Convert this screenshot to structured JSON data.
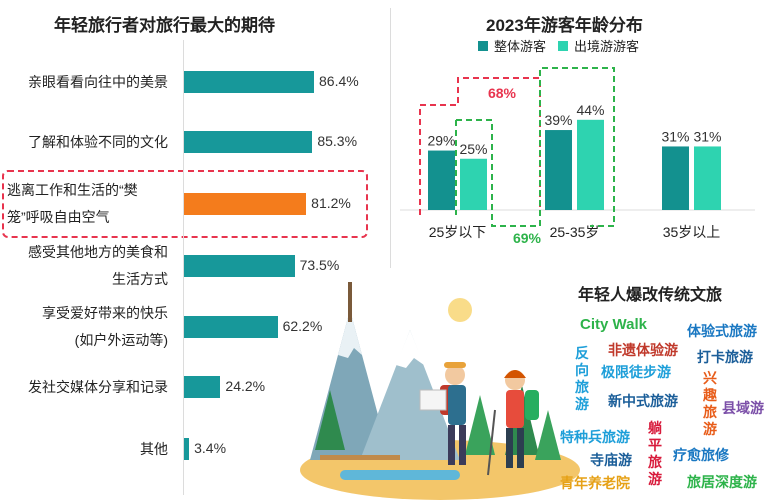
{
  "chart_data": [
    {
      "type": "bar",
      "orientation": "horizontal",
      "title": "年轻旅行者对旅行最大的期待",
      "categories": [
        [
          "亲眼看看向往中的美景"
        ],
        [
          "了解和体验不同的文化"
        ],
        [
          "逃离工作和生活的“樊",
          "笼”呼吸自由空气"
        ],
        [
          "感受其他地方的美食和",
          "生活方式"
        ],
        [
          "享受爱好带来的快乐",
          "(如户外运动等)"
        ],
        [
          "发社交媒体分享和记录"
        ],
        [
          "其他"
        ]
      ],
      "values": [
        86.4,
        85.3,
        81.2,
        73.5,
        62.2,
        24.2,
        3.4
      ],
      "value_labels": [
        "86.4%",
        "85.3%",
        "81.2%",
        "73.5%",
        "62.2%",
        "24.2%",
        "3.4%"
      ],
      "highlight_index": 2,
      "colors": {
        "bar": "#17989a",
        "highlight": "#f47c1c",
        "box": "#e8344e"
      },
      "xlim": [
        0,
        100
      ]
    },
    {
      "type": "bar",
      "title": "2023年游客年龄分布",
      "categories": [
        "25岁以下",
        "25-35岁",
        "35岁以上"
      ],
      "series": [
        {
          "name": "整体游客",
          "values": [
            29,
            39,
            31
          ],
          "labels": [
            "29%",
            "39%",
            "31%"
          ],
          "color": "#13918f"
        },
        {
          "name": "出境游游客",
          "values": [
            25,
            44,
            31
          ],
          "labels": [
            "25%",
            "44%",
            "31%"
          ],
          "color": "#2ed3b0"
        }
      ],
      "annotations": [
        {
          "text": "68%",
          "color": "#e8344e"
        },
        {
          "text": "69%",
          "color": "#2db34a"
        }
      ],
      "ylim": [
        0,
        50
      ]
    }
  ],
  "culture": {
    "title": "年轻人爆改传统文旅",
    "tags": [
      {
        "text": "City Walk",
        "color": "#2db34a"
      },
      {
        "text": "体验式旅游",
        "color": "#1a78c2"
      },
      {
        "text": "非遗体验游",
        "color": "#c0392b"
      },
      {
        "text": "打卡旅游",
        "color": "#1b5e99"
      },
      {
        "text": "极限徒步游",
        "color": "#1e9fd9"
      },
      {
        "text": "新中式旅游",
        "color": "#1b5e99"
      },
      {
        "text": "县域游",
        "color": "#7b4fa8"
      },
      {
        "text": "特种兵旅游",
        "color": "#1e9fd9"
      },
      {
        "text": "疗愈旅修",
        "color": "#1a78c2"
      },
      {
        "text": "寺庙游",
        "color": "#1b5e99"
      },
      {
        "text": "青年养老院",
        "color": "#e6a117"
      },
      {
        "text": "旅居深度游",
        "color": "#2db34a"
      }
    ],
    "vertical_tags": [
      {
        "text": "反向旅游",
        "color": "#1e9fd9"
      },
      {
        "text": "兴趣旅游",
        "color": "#e85d1a"
      },
      {
        "text": "躺平旅游",
        "color": "#d81b3c"
      }
    ]
  }
}
